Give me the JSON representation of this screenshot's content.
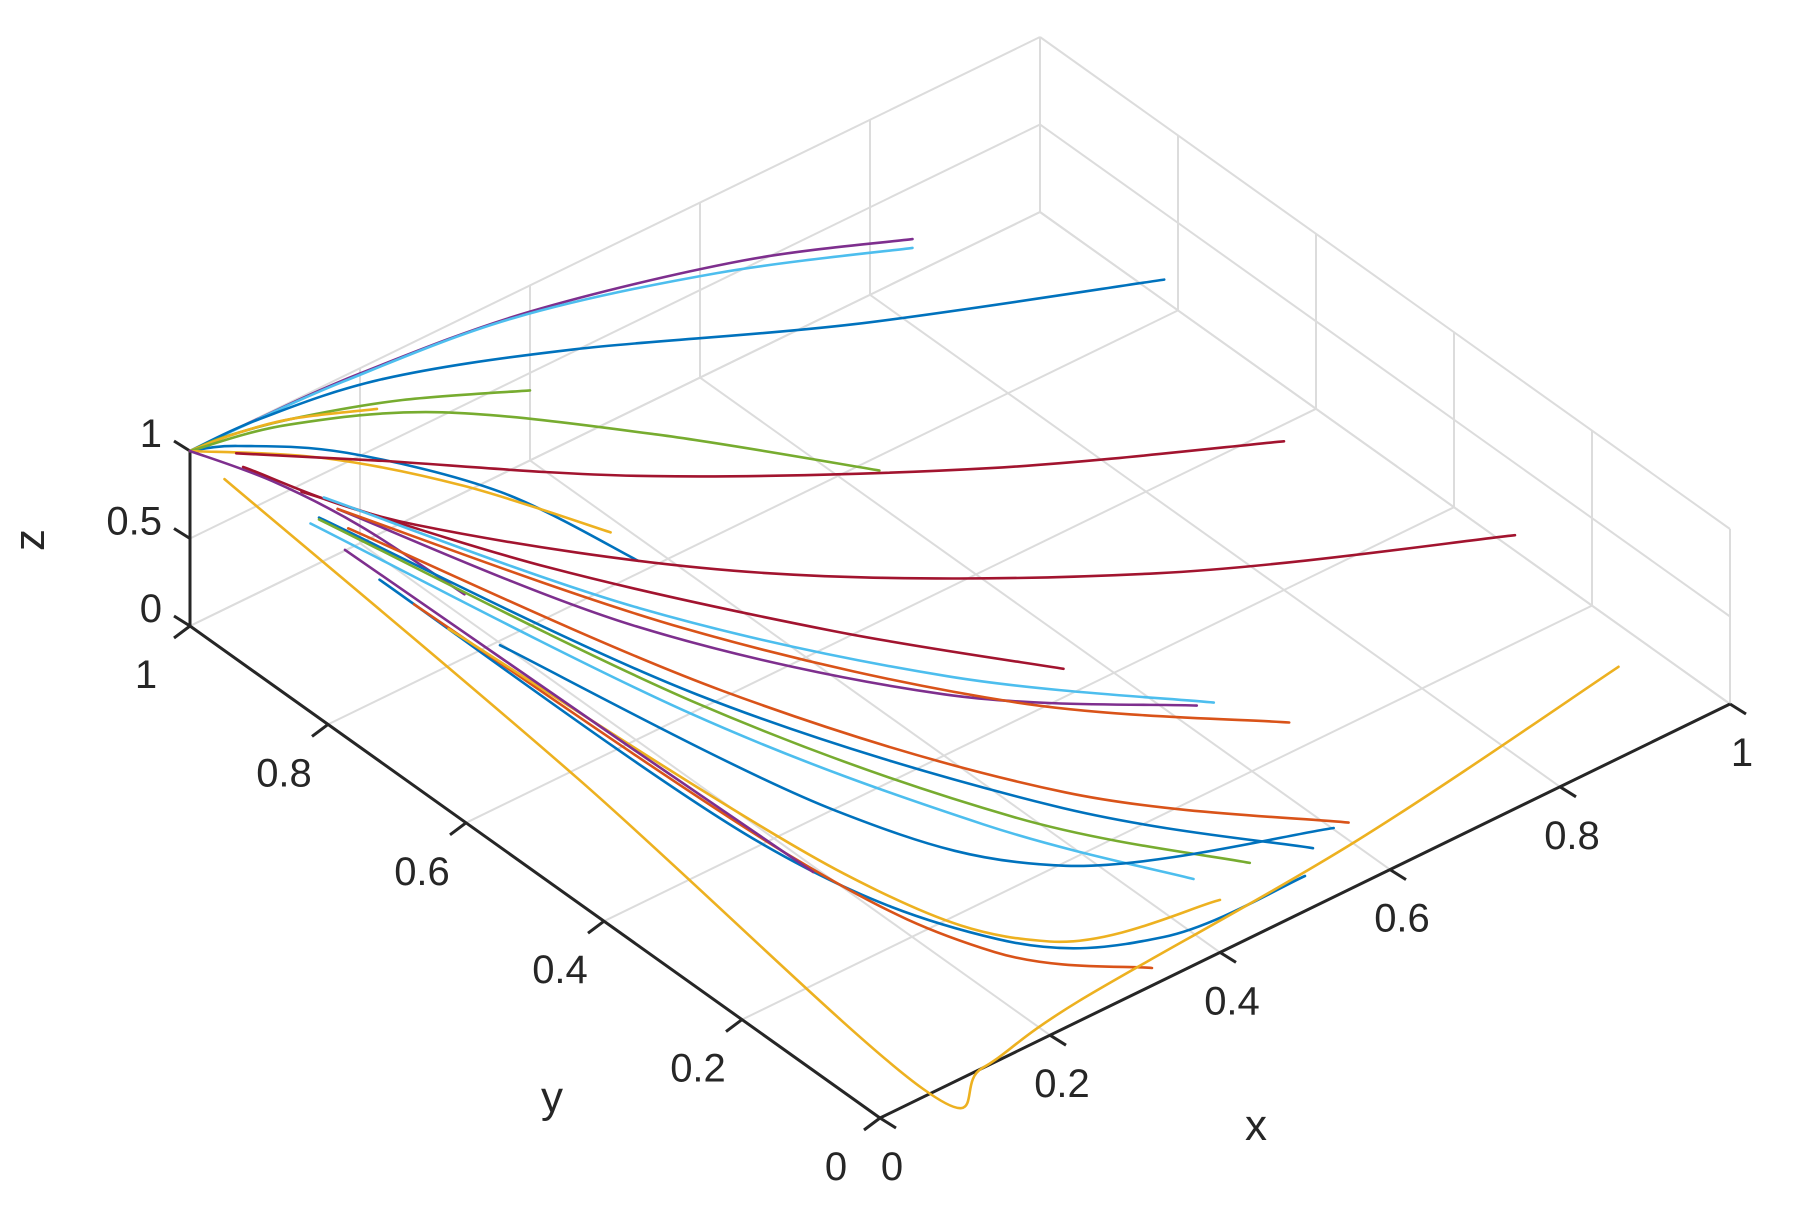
{
  "chart_data": {
    "type": "line",
    "subtype": "3d-trajectories",
    "title": "",
    "xlabel": "x",
    "ylabel": "y",
    "zlabel": "z",
    "xlim": [
      0,
      1
    ],
    "ylim": [
      0,
      1
    ],
    "zlim": [
      0,
      1
    ],
    "x_ticks": [
      {
        "value": 0,
        "label": "0"
      },
      {
        "value": 0.2,
        "label": "0.2"
      },
      {
        "value": 0.4,
        "label": "0.4"
      },
      {
        "value": 0.6,
        "label": "0.6"
      },
      {
        "value": 0.8,
        "label": "0.8"
      },
      {
        "value": 1,
        "label": "1"
      }
    ],
    "y_ticks": [
      {
        "value": 0,
        "label": "0"
      },
      {
        "value": 0.2,
        "label": "0.2"
      },
      {
        "value": 0.4,
        "label": "0.4"
      },
      {
        "value": 0.6,
        "label": "0.6"
      },
      {
        "value": 0.8,
        "label": "0.8"
      },
      {
        "value": 1,
        "label": "1"
      }
    ],
    "z_ticks": [
      {
        "value": 0,
        "label": "0"
      },
      {
        "value": 0.5,
        "label": "0.5"
      },
      {
        "value": 1,
        "label": "1"
      }
    ],
    "grid": true,
    "legend": "none",
    "colors": [
      "#0072BD",
      "#D95319",
      "#EDB120",
      "#7E2F8E",
      "#77AC30",
      "#4DBEEE",
      "#A2142F"
    ],
    "series": [
      {
        "color": "#7E2F8E",
        "points": [
          [
            0.85,
            1.0,
            0.2
          ],
          [
            0.65,
            1.0,
            0.55
          ],
          [
            0.4,
            1.0,
            0.85
          ],
          [
            0.2,
            1.0,
            0.97
          ],
          [
            0.08,
            1.0,
            0.995
          ],
          [
            0,
            1,
            1
          ]
        ]
      },
      {
        "color": "#4DBEEE",
        "points": [
          [
            0.85,
            1.0,
            0.15
          ],
          [
            0.62,
            1.0,
            0.55
          ],
          [
            0.38,
            1.0,
            0.86
          ],
          [
            0.18,
            1.0,
            0.97
          ],
          [
            0.06,
            1.0,
            0.995
          ],
          [
            0,
            1,
            1
          ]
        ]
      },
      {
        "color": "#0072BD",
        "points": [
          [
            1.0,
            0.82,
            0.12
          ],
          [
            0.7,
            0.9,
            0.35
          ],
          [
            0.42,
            0.96,
            0.7
          ],
          [
            0.22,
            0.99,
            0.92
          ],
          [
            0.08,
            1.0,
            0.99
          ],
          [
            0,
            1,
            1
          ]
        ]
      },
      {
        "color": "#77AC30",
        "points": [
          [
            0.4,
            1.0,
            0.4
          ],
          [
            0.25,
            1.0,
            0.7
          ],
          [
            0.12,
            1.0,
            0.9
          ],
          [
            0.04,
            1.0,
            0.985
          ],
          [
            0,
            1,
            1
          ]
        ]
      },
      {
        "color": "#EDB120",
        "points": [
          [
            0.22,
            1.0,
            0.72
          ],
          [
            0.12,
            1.0,
            0.9
          ],
          [
            0.05,
            1.0,
            0.975
          ],
          [
            0,
            1,
            1
          ]
        ]
      },
      {
        "color": "#0072BD",
        "points": [
          [
            0.3,
            0.72,
            0.45
          ],
          [
            0.22,
            0.82,
            0.75
          ],
          [
            0.12,
            0.92,
            0.93
          ],
          [
            0.04,
            0.98,
            0.99
          ],
          [
            0,
            1,
            1
          ]
        ]
      },
      {
        "color": "#77AC30",
        "points": [
          [
            0.6,
            0.74,
            0.2
          ],
          [
            0.42,
            0.84,
            0.55
          ],
          [
            0.24,
            0.93,
            0.85
          ],
          [
            0.1,
            0.98,
            0.97
          ],
          [
            0,
            1,
            1
          ]
        ]
      },
      {
        "color": "#EDB120",
        "points": [
          [
            0.3,
            0.76,
            0.5
          ],
          [
            0.2,
            0.85,
            0.75
          ],
          [
            0.1,
            0.93,
            0.92
          ],
          [
            0,
            1,
            1
          ]
        ]
      },
      {
        "color": "#7E2F8E",
        "points": [
          [
            0.12,
            0.75,
            0.6
          ],
          [
            0.08,
            0.85,
            0.8
          ],
          [
            0.04,
            0.93,
            0.93
          ],
          [
            0,
            1,
            1
          ]
        ]
      },
      {
        "color": "#A2142F",
        "points": [
          [
            0.8,
            0.4,
            0.85
          ],
          [
            0.55,
            0.52,
            0.95
          ],
          [
            0.3,
            0.7,
            0.99
          ],
          [
            0.12,
            0.88,
            1.0
          ],
          [
            0.03,
            0.97,
            1.0
          ]
        ]
      },
      {
        "color": "#A2142F",
        "points": [
          [
            0.95,
            0.25,
            0.38
          ],
          [
            0.65,
            0.4,
            0.45
          ],
          [
            0.35,
            0.6,
            0.6
          ],
          [
            0.12,
            0.82,
            0.8
          ],
          [
            0.03,
            0.96,
            0.95
          ]
        ]
      },
      {
        "color": "#A2142F",
        "points": [
          [
            0.5,
            0.35,
            0.4
          ],
          [
            0.35,
            0.5,
            0.55
          ],
          [
            0.18,
            0.7,
            0.75
          ],
          [
            0.05,
            0.9,
            0.93
          ]
        ]
      },
      {
        "color": "#7E2F8E",
        "points": [
          [
            0.6,
            0.28,
            0.15
          ],
          [
            0.4,
            0.4,
            0.35
          ],
          [
            0.2,
            0.6,
            0.65
          ],
          [
            0.06,
            0.86,
            0.92
          ]
        ]
      },
      {
        "color": "#4DBEEE",
        "points": [
          [
            0.62,
            0.28,
            0.12
          ],
          [
            0.42,
            0.42,
            0.35
          ],
          [
            0.22,
            0.62,
            0.65
          ],
          [
            0.06,
            0.88,
            0.93
          ]
        ]
      },
      {
        "color": "#D95319",
        "points": [
          [
            0.66,
            0.22,
            0.08
          ],
          [
            0.45,
            0.36,
            0.3
          ],
          [
            0.24,
            0.58,
            0.6
          ],
          [
            0.06,
            0.86,
            0.92
          ]
        ]
      },
      {
        "color": "#D95319",
        "points": [
          [
            0.6,
            0.06,
            0.1
          ],
          [
            0.38,
            0.2,
            0.4
          ],
          [
            0.18,
            0.45,
            0.75
          ],
          [
            0.04,
            0.82,
            0.97
          ]
        ]
      },
      {
        "color": "#0072BD",
        "points": [
          [
            0.55,
            0.05,
            0.1
          ],
          [
            0.35,
            0.18,
            0.45
          ],
          [
            0.15,
            0.45,
            0.8
          ],
          [
            0.03,
            0.85,
            0.97
          ]
        ]
      },
      {
        "color": "#77AC30",
        "points": [
          [
            0.5,
            0.08,
            0.05
          ],
          [
            0.32,
            0.2,
            0.4
          ],
          [
            0.15,
            0.45,
            0.75
          ],
          [
            0.03,
            0.85,
            0.96
          ]
        ]
      },
      {
        "color": "#4DBEEE",
        "points": [
          [
            0.45,
            0.1,
            0.02
          ],
          [
            0.3,
            0.22,
            0.35
          ],
          [
            0.14,
            0.45,
            0.72
          ],
          [
            0.02,
            0.85,
            0.96
          ]
        ]
      },
      {
        "color": "#0072BD",
        "points": [
          [
            0.5,
            0.0,
            0.2
          ],
          [
            0.35,
            0.02,
            0.15
          ],
          [
            0.22,
            0.1,
            0.22
          ],
          [
            0.1,
            0.3,
            0.5
          ],
          [
            0.02,
            0.75,
            0.92
          ]
        ]
      },
      {
        "color": "#D95319",
        "points": [
          [
            0.32,
            0.0,
            0.1
          ],
          [
            0.2,
            0.08,
            0.25
          ],
          [
            0.1,
            0.25,
            0.55
          ],
          [
            0.02,
            0.7,
            0.92
          ]
        ]
      },
      {
        "color": "#EDB120",
        "points": [
          [
            0.4,
            0.0,
            0.3
          ],
          [
            0.24,
            0.05,
            0.3
          ],
          [
            0.12,
            0.2,
            0.55
          ],
          [
            0.02,
            0.65,
            0.92
          ]
        ]
      },
      {
        "color": "#EDB120",
        "points": [
          [
            0.95,
            0.1,
            0.05
          ],
          [
            0.6,
            0.05,
            0.02
          ],
          [
            0.25,
            0.02,
            0.02
          ],
          [
            0.12,
            0.0,
            0.0
          ],
          [
            0.05,
            0.0,
            0.05
          ],
          [
            0.01,
            0.45,
            0.65
          ],
          [
            0,
            0.95,
            0.98
          ]
        ]
      },
      {
        "color": "#0072BD",
        "points": [
          [
            0.55,
            0.02,
            0.3
          ],
          [
            0.3,
            0.1,
            0.45
          ],
          [
            0.15,
            0.25,
            0.7
          ],
          [
            0.04,
            0.6,
            0.92
          ]
        ]
      },
      {
        "color": "#7E2F8E",
        "points": [
          [
            0.1,
            0.22,
            0.55
          ],
          [
            0.06,
            0.45,
            0.75
          ],
          [
            0.02,
            0.8,
            0.95
          ]
        ]
      }
    ]
  }
}
